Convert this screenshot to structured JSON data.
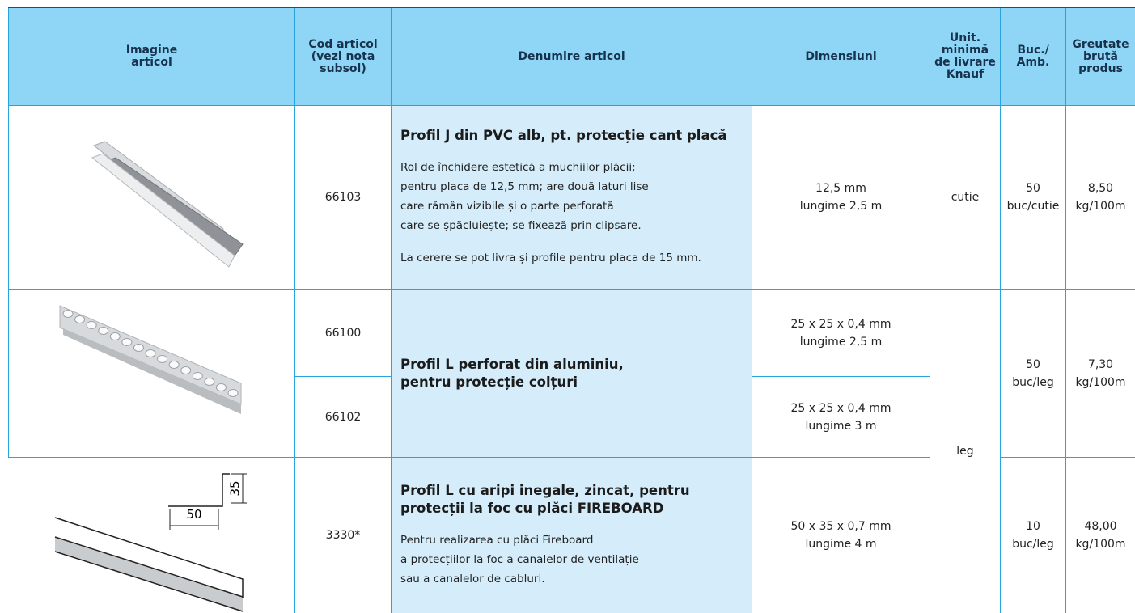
{
  "table": {
    "header": [
      [
        "Imagine",
        "articol"
      ],
      [
        "Cod articol",
        "(vezi nota",
        "subsol)"
      ],
      [
        "Denumire articol"
      ],
      [
        "Dimensiuni"
      ],
      [
        "Unit.",
        "minimă",
        "de livrare",
        "Knauf"
      ],
      [
        "Buc./",
        "Amb."
      ],
      [
        "Greutate",
        "brută",
        "produs"
      ]
    ],
    "rows": [
      {
        "codes": [
          "66103"
        ],
        "title": [
          "Profil J din PVC alb, pt. protecție cant placă"
        ],
        "description": [
          "Rol de închidere estetică a muchiilor plăcii;",
          "pentru placa de 12,5 mm; are două laturi lise",
          "care rămân vizibile și o parte perforată",
          "care se șpăcluiește; se fixează prin clipsare."
        ],
        "note": "La cerere se pot livra și profile pentru placa de 15 mm.",
        "dimensions": [
          [
            "12,5 mm",
            "lungime 2,5 m"
          ]
        ],
        "unit": "cutie",
        "pack": [
          "50",
          "buc/cutie"
        ],
        "weight": [
          "8,50",
          "kg/100m"
        ]
      },
      {
        "codes": [
          "66100",
          "66102"
        ],
        "title": [
          "Profil L perforat din aluminiu,",
          "pentru protecție colțuri"
        ],
        "dimensions": [
          [
            "25 x 25 x 0,4 mm",
            "lungime 2,5 m"
          ],
          [
            "25 x 25 x 0,4 mm",
            "lungime 3 m"
          ]
        ],
        "unit": "leg",
        "pack": [
          "50",
          "buc/leg"
        ],
        "weight": [
          "7,30",
          "kg/100m"
        ]
      },
      {
        "codes": [
          "3330*"
        ],
        "title": [
          "Profil L cu aripi inegale, zincat, pentru",
          "protecții la foc cu plăci FIREBOARD"
        ],
        "description": [
          "Pentru realizarea cu plăci Fireboard",
          "a protecțiilor la foc a canalelor de ventilație",
          "sau a canalelor de cabluri."
        ],
        "dimensions": [
          [
            "50 x 35 x 0,7 mm",
            "lungime 4 m"
          ]
        ],
        "pack": [
          "10",
          "buc/leg"
        ],
        "weight": [
          "48,00",
          "kg/100m"
        ],
        "drawing_labels": [
          "35",
          "50"
        ]
      }
    ]
  }
}
